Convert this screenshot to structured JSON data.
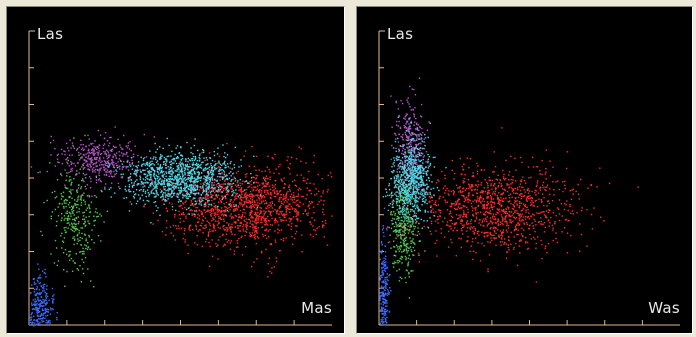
{
  "chart_data": [
    {
      "type": "scatter",
      "xlabel": "Mas",
      "ylabel": "Las",
      "xlim": [
        0,
        8
      ],
      "ylim": [
        0,
        8
      ],
      "xticks": [
        1,
        2,
        3,
        4,
        5,
        6,
        7
      ],
      "yticks": [
        1,
        2,
        3,
        4,
        5,
        6,
        7
      ],
      "grid": false,
      "series": [
        {
          "color": "#3a6cff",
          "clusters": [
            {
              "cx": 0.25,
              "cy": 0.45,
              "sx": 0.18,
              "sy": 0.45,
              "n": 300
            }
          ]
        },
        {
          "color": "#55c64b",
          "clusters": [
            {
              "cx": 1.2,
              "cy": 2.9,
              "sx": 0.3,
              "sy": 0.75,
              "n": 320
            }
          ]
        },
        {
          "color": "#b455c8",
          "clusters": [
            {
              "cx": 1.8,
              "cy": 4.5,
              "sx": 0.55,
              "sy": 0.35,
              "n": 380
            }
          ]
        },
        {
          "color": "#ff2a2a",
          "clusters": [
            {
              "cx": 5.7,
              "cy": 3.25,
              "sx": 1.05,
              "sy": 0.55,
              "n": 1300
            }
          ]
        },
        {
          "color": "#55d5e8",
          "clusters": [
            {
              "cx": 4.0,
              "cy": 4.0,
              "sx": 0.75,
              "sy": 0.35,
              "n": 1100
            }
          ]
        }
      ]
    },
    {
      "type": "scatter",
      "xlabel": "Was",
      "ylabel": "Las",
      "xlim": [
        0,
        8
      ],
      "ylim": [
        0,
        8
      ],
      "xticks": [
        1,
        2,
        3,
        4,
        5,
        6,
        7
      ],
      "yticks": [
        1,
        2,
        3,
        4,
        5,
        6,
        7
      ],
      "grid": false,
      "series": [
        {
          "color": "#3a6cff",
          "clusters": [
            {
              "cx": 0.1,
              "cy": 0.7,
              "sx": 0.07,
              "sy": 0.75,
              "n": 250
            }
          ]
        },
        {
          "color": "#55c64b",
          "clusters": [
            {
              "cx": 0.65,
              "cy": 2.75,
              "sx": 0.18,
              "sy": 0.7,
              "n": 320
            }
          ]
        },
        {
          "color": "#b455c8",
          "clusters": [
            {
              "cx": 0.8,
              "cy": 5.0,
              "sx": 0.2,
              "sy": 0.6,
              "n": 280
            }
          ]
        },
        {
          "color": "#ff2a2a",
          "clusters": [
            {
              "cx": 3.1,
              "cy": 3.2,
              "sx": 1.0,
              "sy": 0.6,
              "n": 1100
            }
          ]
        },
        {
          "color": "#55d5e8",
          "clusters": [
            {
              "cx": 0.85,
              "cy": 3.9,
              "sx": 0.28,
              "sy": 0.55,
              "n": 700
            }
          ]
        }
      ]
    }
  ]
}
